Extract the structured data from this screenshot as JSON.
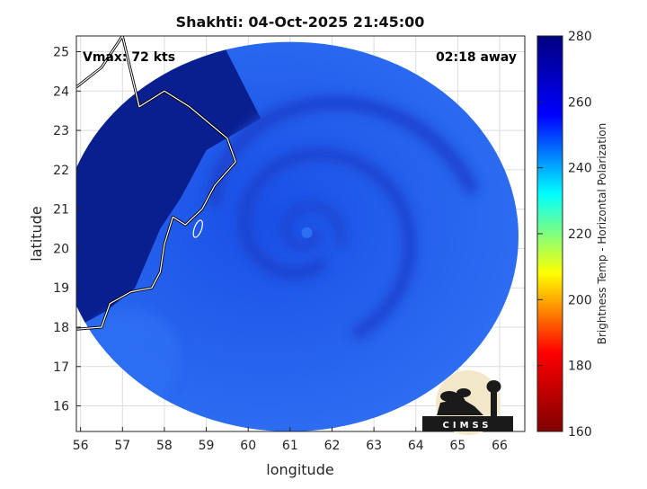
{
  "chart_data": {
    "type": "heatmap",
    "title": "Shakhti: 04-Oct-2025 21:45:00",
    "xlabel": "longitude",
    "ylabel": "latitude",
    "xlim": [
      55.9,
      66.6
    ],
    "ylim": [
      15.35,
      25.4
    ],
    "x_ticks": [
      "56",
      "57",
      "58",
      "59",
      "60",
      "61",
      "62",
      "63",
      "64",
      "65",
      "66"
    ],
    "y_ticks": [
      "16",
      "17",
      "18",
      "19",
      "20",
      "21",
      "22",
      "23",
      "24",
      "25"
    ],
    "grid": true,
    "annotations": {
      "vmax": "Vmax: 72 kts",
      "time_offset": "02:18 away"
    },
    "storm_center": {
      "lon": 61.4,
      "lat": 20.4
    },
    "swath": {
      "center_lon": 61.0,
      "center_lat": 20.3,
      "radius_lon": 5.45,
      "radius_lat": 4.95
    },
    "colorbar": {
      "label": "Brightness Temp - Horizontal Polarization",
      "range": [
        160,
        280
      ],
      "ticks": [
        "160",
        "180",
        "200",
        "220",
        "240",
        "260",
        "280"
      ],
      "colormap": [
        "#7f0000",
        "#ff0000",
        "#ffff00",
        "#00ffff",
        "#0000ff",
        "#00007f"
      ]
    },
    "field_colors": {
      "ocean": "#1a4fe6",
      "land": "#0a1f8f",
      "band": "#1f43cf",
      "outer_edge": "#2d6ff2"
    },
    "logo": {
      "text": "CIMSS"
    }
  }
}
